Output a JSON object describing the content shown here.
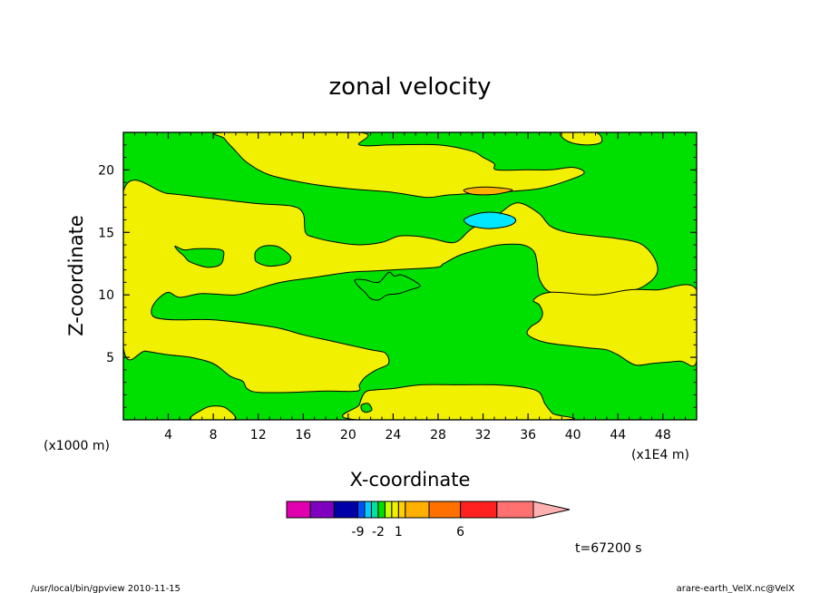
{
  "chart_data": {
    "type": "contour",
    "title": "zonal velocity",
    "xlabel": "X-coordinate",
    "ylabel": "Z-coordinate",
    "x_unit_note": "(x1E4 m)",
    "y_unit_note": "(x1000 m)",
    "xlim": [
      0,
      51
    ],
    "ylim": [
      0,
      23
    ],
    "x_ticks": [
      4,
      8,
      12,
      16,
      20,
      24,
      28,
      32,
      36,
      40,
      44,
      48
    ],
    "y_ticks": [
      5,
      10,
      15,
      20
    ],
    "time_label": "t=67200 s",
    "colorbar": {
      "colors": [
        "#e000b0",
        "#8000c0",
        "#0000a8",
        "#0050ff",
        "#00ccff",
        "#00e0a0",
        "#00e000",
        "#ccff00",
        "#f0f000",
        "#ffd000",
        "#ffb000",
        "#ff7000",
        "#ff2020",
        "#ff7070",
        "#ffb0b0"
      ],
      "tick_labels": [
        {
          "label": "-9",
          "after_bin": 2
        },
        {
          "label": "-2",
          "after_bin": 5
        },
        {
          "label": "1",
          "after_bin": 8
        },
        {
          "label": "6",
          "after_bin": 11
        }
      ]
    },
    "fill_colors": {
      "background": "#00e000",
      "positive": "#f0f000",
      "orange": "#ffb000",
      "cyan": "#00e8ff"
    },
    "regions": [
      {
        "color": "positive",
        "points": [
          [
            9,
            23
          ],
          [
            21,
            23
          ],
          [
            21,
            22
          ],
          [
            24,
            22
          ],
          [
            28,
            22
          ],
          [
            31,
            21.5
          ],
          [
            32,
            21
          ],
          [
            33,
            20.5
          ],
          [
            33.2,
            20
          ],
          [
            36,
            20
          ],
          [
            38,
            20
          ],
          [
            40,
            20.2
          ],
          [
            41,
            19.8
          ],
          [
            40,
            19.3
          ],
          [
            37,
            18.5
          ],
          [
            33,
            18.2
          ],
          [
            29,
            18
          ],
          [
            27,
            17.8
          ],
          [
            24,
            18.2
          ],
          [
            20,
            18.5
          ],
          [
            16.5,
            18.9
          ],
          [
            13,
            19.6
          ],
          [
            11,
            20.6
          ],
          [
            10,
            21.5
          ],
          [
            9,
            22.5
          ]
        ]
      },
      {
        "color": "positive",
        "points": [
          [
            39,
            23
          ],
          [
            42,
            23
          ],
          [
            42.5,
            22.2
          ],
          [
            41,
            22
          ],
          [
            39.5,
            22.3
          ]
        ]
      },
      {
        "color": "positive",
        "points": [
          [
            0,
            18.3
          ],
          [
            4,
            18.1
          ],
          [
            8,
            17.7
          ],
          [
            12,
            17.3
          ],
          [
            15,
            17.1
          ],
          [
            16,
            16.5
          ],
          [
            16.2,
            15
          ],
          [
            17,
            14.6
          ],
          [
            19,
            14.2
          ],
          [
            21,
            14
          ],
          [
            23,
            14.2
          ],
          [
            24.5,
            14.7
          ],
          [
            26,
            14.7
          ],
          [
            27.5,
            14.5
          ],
          [
            29.5,
            14.2
          ],
          [
            31,
            15.3
          ],
          [
            33,
            16.2
          ],
          [
            34.5,
            17.2
          ],
          [
            35.5,
            17.3
          ],
          [
            37,
            16.5
          ],
          [
            38,
            15.5
          ],
          [
            39.5,
            15
          ],
          [
            42,
            14.7
          ],
          [
            44,
            14.5
          ],
          [
            46,
            14.1
          ],
          [
            47.2,
            13
          ],
          [
            47.5,
            11.8
          ],
          [
            46.5,
            10.8
          ],
          [
            45,
            10.3
          ],
          [
            42,
            10
          ],
          [
            39.5,
            10
          ],
          [
            37.8,
            10.3
          ],
          [
            37,
            11.3
          ],
          [
            36.8,
            12.6
          ],
          [
            36.5,
            13.5
          ],
          [
            35.5,
            14
          ],
          [
            33.5,
            14
          ],
          [
            32,
            13.7
          ],
          [
            30,
            13.2
          ],
          [
            28.5,
            12.5
          ],
          [
            27.8,
            12.2
          ],
          [
            24,
            12
          ],
          [
            22,
            11.9
          ],
          [
            20,
            11.8
          ],
          [
            17,
            11.4
          ],
          [
            14,
            11
          ],
          [
            12,
            10.5
          ],
          [
            10,
            10
          ],
          [
            7,
            10.1
          ],
          [
            5,
            9.8
          ],
          [
            4,
            10.2
          ],
          [
            3,
            9.6
          ],
          [
            2.5,
            8.8
          ],
          [
            2.8,
            8.2
          ],
          [
            4.5,
            8
          ],
          [
            8,
            8
          ],
          [
            12,
            7.6
          ],
          [
            14,
            7.3
          ],
          [
            16,
            6.8
          ],
          [
            18,
            6.4
          ],
          [
            20,
            6
          ],
          [
            22,
            5.6
          ],
          [
            23.2,
            5.4
          ],
          [
            23.6,
            4.9
          ],
          [
            23.5,
            4.4
          ],
          [
            22.5,
            4
          ],
          [
            21.5,
            3.4
          ],
          [
            21,
            2.8
          ],
          [
            20.8,
            2.3
          ],
          [
            18,
            2.3
          ],
          [
            15,
            2.2
          ],
          [
            12,
            2.2
          ],
          [
            11,
            2.5
          ],
          [
            10.6,
            3.1
          ],
          [
            9.5,
            3.5
          ],
          [
            8,
            4.5
          ],
          [
            6,
            5
          ],
          [
            4,
            5.2
          ],
          [
            2,
            5.5
          ],
          [
            0,
            5.8
          ]
        ]
      },
      {
        "color": "positive",
        "points": [
          [
            36.5,
            9.6
          ],
          [
            38,
            10.2
          ],
          [
            42,
            10
          ],
          [
            45,
            10.4
          ],
          [
            47.5,
            10.4
          ],
          [
            51,
            10.4
          ],
          [
            51,
            4.7
          ],
          [
            49.5,
            4.7
          ],
          [
            47,
            4.5
          ],
          [
            45.5,
            4.4
          ],
          [
            44,
            5.2
          ],
          [
            43,
            5.6
          ],
          [
            42,
            5.7
          ],
          [
            40,
            5.9
          ],
          [
            37.5,
            6.2
          ],
          [
            36,
            6.8
          ],
          [
            36.2,
            7.4
          ],
          [
            37,
            7.9
          ],
          [
            37.3,
            8.5
          ],
          [
            37,
            9.2
          ]
        ]
      },
      {
        "color": "positive",
        "points": [
          [
            21.5,
            2.2
          ],
          [
            22.5,
            2.4
          ],
          [
            24,
            2.5
          ],
          [
            26.5,
            2.8
          ],
          [
            30,
            2.8
          ],
          [
            33,
            2.8
          ],
          [
            35.6,
            2.6
          ],
          [
            37,
            2.2
          ],
          [
            37.5,
            1.3
          ],
          [
            38.2,
            0.5
          ],
          [
            39,
            0
          ],
          [
            20.8,
            0
          ],
          [
            21,
            1.2
          ]
        ]
      },
      {
        "color": "positive",
        "points": [
          [
            6,
            0
          ],
          [
            7.2,
            0.9
          ],
          [
            8.2,
            1.1
          ],
          [
            9.2,
            0.9
          ],
          [
            9.8,
            0
          ]
        ]
      },
      {
        "color": "background",
        "points": [
          [
            21.2,
            1.2
          ],
          [
            21.8,
            1.3
          ],
          [
            22.1,
            0.8
          ],
          [
            21.6,
            0.6
          ],
          [
            21.2,
            0.8
          ]
        ]
      },
      {
        "color": "background",
        "points": [
          [
            4.6,
            13.9
          ],
          [
            5.4,
            13.6
          ],
          [
            6.6,
            13.7
          ],
          [
            8.7,
            13.6
          ],
          [
            8.9,
            13
          ],
          [
            8.6,
            12.4
          ],
          [
            7.6,
            12.2
          ],
          [
            6.6,
            12.4
          ],
          [
            5.8,
            12.7
          ],
          [
            5.4,
            13.1
          ],
          [
            4.9,
            13.5
          ]
        ]
      },
      {
        "color": "background",
        "points": [
          [
            11.8,
            13.5
          ],
          [
            12.5,
            13.9
          ],
          [
            13.6,
            13.9
          ],
          [
            14.4,
            13.5
          ],
          [
            14.9,
            13
          ],
          [
            14.5,
            12.5
          ],
          [
            13,
            12.3
          ],
          [
            11.9,
            12.6
          ],
          [
            11.7,
            13
          ]
        ]
      },
      {
        "color": "background",
        "points": [
          [
            20.6,
            11.2
          ],
          [
            21.5,
            11.2
          ],
          [
            22.7,
            11
          ],
          [
            23.6,
            11.8
          ],
          [
            24.1,
            11.5
          ],
          [
            24.7,
            11.6
          ],
          [
            25.7,
            11.2
          ],
          [
            26.4,
            10.7
          ],
          [
            25.5,
            10.4
          ],
          [
            24.5,
            10.1
          ],
          [
            23.5,
            10
          ],
          [
            22.7,
            9.6
          ],
          [
            22,
            9.7
          ],
          [
            21.5,
            10.2
          ],
          [
            20.9,
            10.7
          ]
        ]
      },
      {
        "color": "orange",
        "points": [
          [
            30.3,
            18.4
          ],
          [
            31.5,
            18.6
          ],
          [
            33,
            18.6
          ],
          [
            34.6,
            18.4
          ],
          [
            33.5,
            18.1
          ],
          [
            32,
            18
          ],
          [
            30.8,
            18.1
          ]
        ]
      },
      {
        "color": "cyan",
        "points": [
          [
            30.4,
            16.1
          ],
          [
            31.5,
            16.5
          ],
          [
            33,
            16.6
          ],
          [
            34.5,
            16.3
          ],
          [
            34.9,
            15.9
          ],
          [
            34.2,
            15.5
          ],
          [
            32.5,
            15.3
          ],
          [
            31,
            15.5
          ],
          [
            30.4,
            15.8
          ]
        ]
      }
    ]
  },
  "footer": {
    "left": "/usr/local/bin/gpview  2010-11-15",
    "right": "arare-earth_VelX.nc@VelX"
  }
}
